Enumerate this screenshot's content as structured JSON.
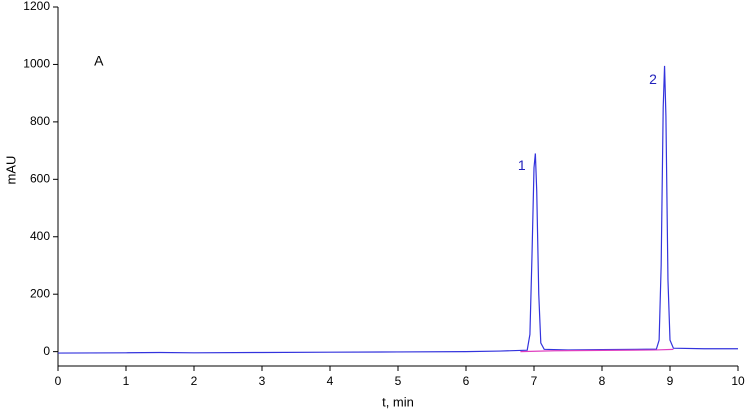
{
  "chart_data": {
    "type": "line",
    "xlabel": "t, min",
    "ylabel": "mAU",
    "xlim": [
      0,
      10
    ],
    "ylim": [
      -50,
      1200
    ],
    "xticks": [
      0,
      1,
      2,
      3,
      4,
      5,
      6,
      7,
      8,
      9,
      10
    ],
    "yticks": [
      0,
      200,
      400,
      600,
      800,
      1000,
      1200
    ],
    "series": [
      {
        "color": "#3333dd",
        "x": [
          0,
          1,
          1.5,
          2,
          3,
          4,
          5,
          6,
          6.5,
          6.9,
          6.94,
          6.97,
          7.0,
          7.02,
          7.04,
          7.07,
          7.1,
          7.15,
          7.5,
          8,
          8.5,
          8.8,
          8.84,
          8.87,
          8.9,
          8.92,
          8.94,
          8.97,
          9.0,
          9.05,
          9.5,
          10
        ],
        "values": [
          -5,
          -4,
          -3,
          -4,
          -3,
          -2,
          -1,
          0,
          2,
          5,
          60,
          330,
          640,
          690,
          560,
          200,
          30,
          8,
          6,
          7,
          8,
          9,
          40,
          300,
          850,
          995,
          820,
          250,
          40,
          12,
          10,
          10
        ]
      },
      {
        "color": "#e040c0",
        "x": [
          6.8,
          7.3,
          8.8,
          9.05
        ],
        "values": [
          0,
          3,
          6,
          8
        ]
      }
    ],
    "annotations": [
      {
        "text": "A",
        "x": 0.6,
        "y": 1010,
        "color": "#000000"
      },
      {
        "text": "1",
        "x": 6.82,
        "y": 645,
        "color": "#2222bb"
      },
      {
        "text": "2",
        "x": 8.75,
        "y": 945,
        "color": "#2222bb"
      }
    ]
  }
}
